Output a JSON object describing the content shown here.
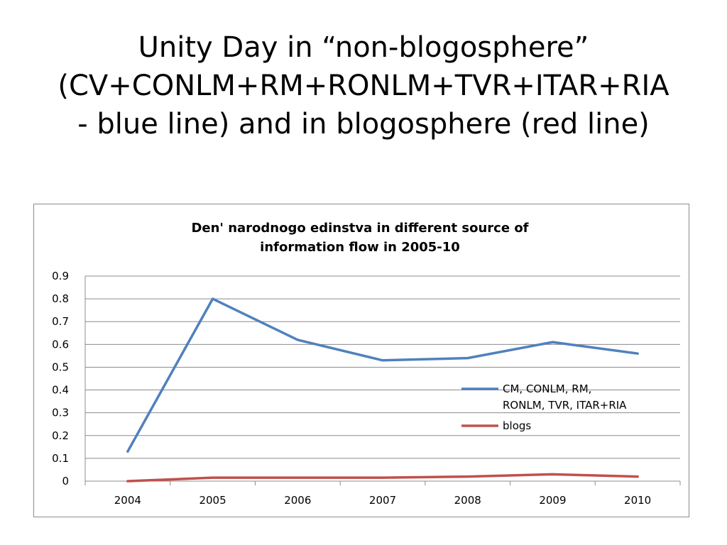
{
  "slide": {
    "title_lines": [
      "Unity Day in “non-blogosphere”",
      "(CV+CONLM+RM+RONLM+TVR+ITAR+RIA",
      "- blue line) and in blogosphere (red line)"
    ]
  },
  "chart_data": {
    "type": "line",
    "title": "Den' narodnogo edinstva in different source of information flow in 2005-10",
    "title_lines": [
      "Den' narodnogo edinstva in different source of",
      "information flow in 2005-10"
    ],
    "x": [
      "2004",
      "2005",
      "2006",
      "2007",
      "2008",
      "2009",
      "2010"
    ],
    "ylim": [
      0,
      0.9
    ],
    "yticks": [
      "0",
      "0.1",
      "0.2",
      "0.3",
      "0.4",
      "0.5",
      "0.6",
      "0.7",
      "0.8",
      "0.9"
    ],
    "grid": true,
    "legend_position": "right",
    "series": [
      {
        "name": "CM, CONLM, RM, RONLM, TVR, ITAR+RIA",
        "legend_lines": [
          "CM, CONLM, RM,",
          "RONLM, TVR, ITAR+RIA"
        ],
        "color": "#4f81bd",
        "values": [
          0.13,
          0.8,
          0.62,
          0.53,
          0.54,
          0.61,
          0.56
        ]
      },
      {
        "name": "blogs",
        "legend_lines": [
          "blogs"
        ],
        "color": "#c0504d",
        "values": [
          0.0,
          0.015,
          0.015,
          0.015,
          0.02,
          0.03,
          0.02
        ]
      }
    ]
  }
}
